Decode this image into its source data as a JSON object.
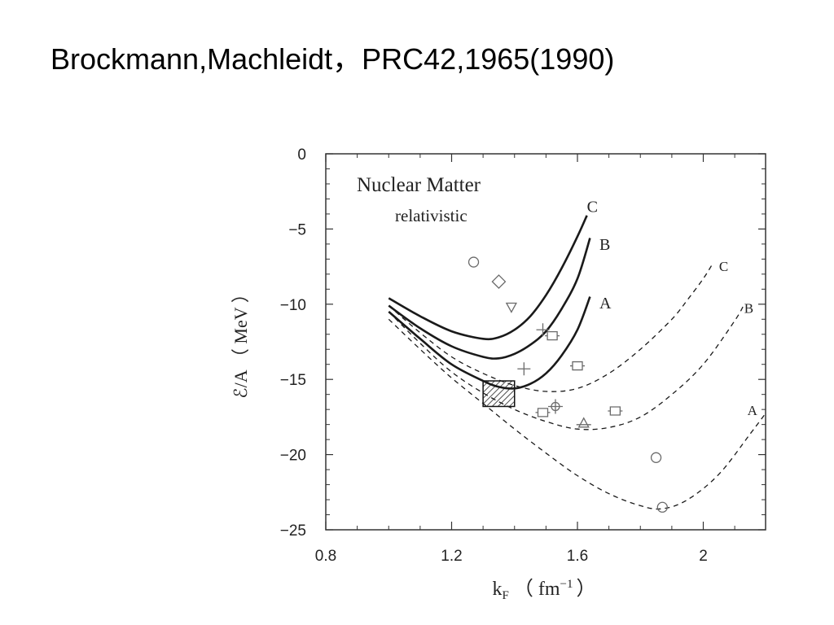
{
  "slide": {
    "title": "Brockmann,Machleidt，PRC42,1965(1990)"
  },
  "chart_data": {
    "type": "line",
    "title": "Nuclear Matter",
    "subtitle": "relativistic",
    "xlabel": "k",
    "xlabel_sub": "F",
    "xlabel_unit": "（ fm",
    "xlabel_unit_sup": "−1",
    "xlabel_unit_close": "）",
    "ylabel": "ℰ/A （ MeV ）",
    "xlim": [
      0.8,
      2.2
    ],
    "ylim": [
      -25,
      0
    ],
    "xticks": [
      0.8,
      1.2,
      1.6,
      2.0
    ],
    "xtick_labels": [
      "0.8",
      "1.2",
      "1.6",
      "2"
    ],
    "yticks": [
      0,
      -5,
      -10,
      -15,
      -20,
      -25
    ],
    "ytick_labels": [
      "0",
      "−5",
      "−10",
      "−15",
      "−20",
      "−25"
    ],
    "series": [
      {
        "name": "C",
        "style": "solid",
        "label_pos": [
          1.63,
          -3.5
        ],
        "x": [
          1.0,
          1.1,
          1.2,
          1.3,
          1.35,
          1.4,
          1.45,
          1.5,
          1.55,
          1.6,
          1.63
        ],
        "y": [
          -9.6,
          -10.8,
          -11.8,
          -12.3,
          -12.2,
          -11.7,
          -10.8,
          -9.4,
          -7.6,
          -5.5,
          -4.1
        ]
      },
      {
        "name": "B",
        "style": "solid",
        "label_pos": [
          1.67,
          -6.0
        ],
        "x": [
          1.0,
          1.1,
          1.2,
          1.3,
          1.35,
          1.4,
          1.45,
          1.5,
          1.55,
          1.6,
          1.64
        ],
        "y": [
          -10.1,
          -11.6,
          -12.8,
          -13.5,
          -13.6,
          -13.3,
          -12.7,
          -11.8,
          -10.3,
          -8.3,
          -5.6
        ]
      },
      {
        "name": "A",
        "style": "solid",
        "label_pos": [
          1.67,
          -9.9
        ],
        "x": [
          1.0,
          1.1,
          1.2,
          1.3,
          1.35,
          1.4,
          1.45,
          1.5,
          1.55,
          1.6,
          1.64
        ],
        "y": [
          -10.5,
          -12.3,
          -14.0,
          -15.1,
          -15.5,
          -15.6,
          -15.3,
          -14.6,
          -13.4,
          -11.7,
          -9.5
        ]
      },
      {
        "name": "C",
        "style": "dashed",
        "label_pos": [
          2.05,
          -7.4
        ],
        "x": [
          1.0,
          1.1,
          1.2,
          1.3,
          1.4,
          1.5,
          1.6,
          1.7,
          1.8,
          1.9,
          1.95,
          2.0,
          2.03
        ],
        "y": [
          -10.1,
          -11.9,
          -13.5,
          -14.6,
          -15.4,
          -15.8,
          -15.6,
          -14.6,
          -13.0,
          -11.0,
          -9.7,
          -8.3,
          -7.3
        ]
      },
      {
        "name": "B",
        "style": "dashed",
        "label_pos": [
          2.13,
          -10.2
        ],
        "x": [
          1.0,
          1.1,
          1.2,
          1.3,
          1.4,
          1.5,
          1.6,
          1.7,
          1.8,
          1.9,
          2.0,
          2.1,
          2.13
        ],
        "y": [
          -10.5,
          -12.6,
          -14.5,
          -15.9,
          -17.0,
          -17.8,
          -18.3,
          -18.2,
          -17.5,
          -16.0,
          -14.0,
          -11.1,
          -10.0
        ]
      },
      {
        "name": "A",
        "style": "dashed",
        "label_pos": [
          2.14,
          -17.0
        ],
        "x": [
          1.0,
          1.1,
          1.2,
          1.3,
          1.4,
          1.5,
          1.6,
          1.7,
          1.8,
          1.87,
          1.95,
          2.05,
          2.15,
          2.2
        ],
        "y": [
          -11.0,
          -13.0,
          -14.9,
          -16.6,
          -18.3,
          -19.9,
          -21.4,
          -22.6,
          -23.4,
          -23.6,
          -23.0,
          -21.3,
          -18.6,
          -17.2
        ]
      }
    ],
    "markers": [
      {
        "shape": "circle",
        "x": 1.27,
        "y": -7.2
      },
      {
        "shape": "diamond",
        "x": 1.35,
        "y": -8.5
      },
      {
        "shape": "triangle-down",
        "x": 1.39,
        "y": -10.2
      },
      {
        "shape": "plus",
        "x": 1.49,
        "y": -11.7
      },
      {
        "shape": "square",
        "x": 1.52,
        "y": -12.1
      },
      {
        "shape": "square",
        "x": 1.6,
        "y": -14.1
      },
      {
        "shape": "plus",
        "x": 1.43,
        "y": -14.3
      },
      {
        "shape": "square",
        "x": 1.49,
        "y": -17.2
      },
      {
        "shape": "circle-plus",
        "x": 1.53,
        "y": -16.8
      },
      {
        "shape": "triangle",
        "x": 1.62,
        "y": -17.9
      },
      {
        "shape": "square",
        "x": 1.72,
        "y": -17.1
      },
      {
        "shape": "circle",
        "x": 1.85,
        "y": -20.2
      },
      {
        "shape": "circle",
        "x": 1.87,
        "y": -23.5
      }
    ],
    "empirical_box": {
      "x": [
        1.3,
        1.4
      ],
      "y": [
        -15.1,
        -16.8
      ],
      "fill": "hatched"
    },
    "colors": {
      "line": "#1a1a1a",
      "marker": "#6a6a6a",
      "frame": "#333333"
    }
  }
}
